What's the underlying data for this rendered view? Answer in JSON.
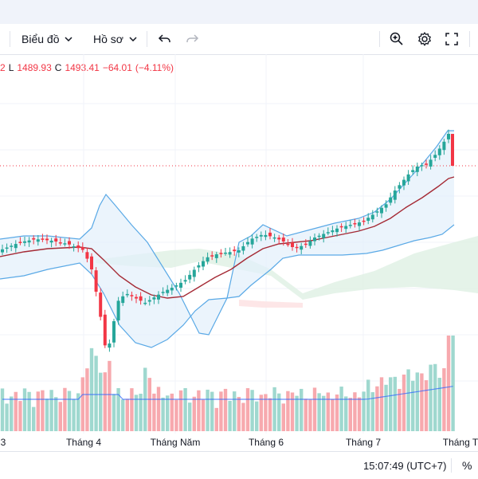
{
  "toolbar": {
    "chart_menu_label": "Biểu đồ",
    "profile_menu_label": "Hồ sơ",
    "icons": [
      "chevron-down-icon",
      "undo-icon",
      "redo-icon",
      "quick-search-icon",
      "gear-icon",
      "fullscreen-icon"
    ]
  },
  "legend": {
    "h_value": "2",
    "l_key": "L",
    "l_value": "1489.93",
    "c_key": "C",
    "c_value": "1493.41",
    "change": "−64.01",
    "change_pct": "(−4.11%)"
  },
  "xaxis": {
    "labels": [
      "3",
      "Tháng 4",
      "Tháng Năm",
      "Tháng 6",
      "Tháng 7",
      "Tháng T"
    ]
  },
  "status": {
    "time": "15:07:49 (UTC+7)",
    "percent_label": "%"
  },
  "colors": {
    "up": "#26a69a",
    "down": "#f23645",
    "bollinger": "#5aa9e6",
    "ma": "#a52a35",
    "cloud": "#dff0e3"
  }
}
